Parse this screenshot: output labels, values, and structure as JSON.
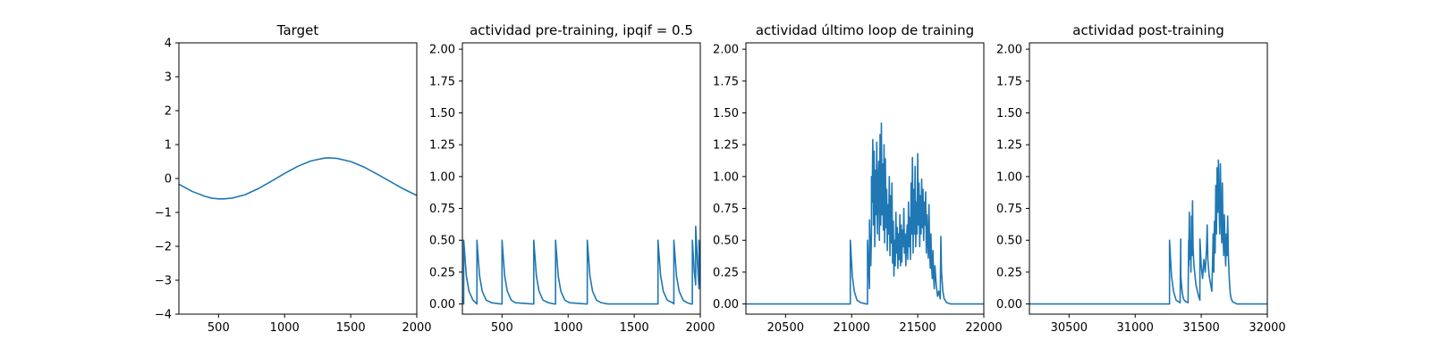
{
  "chart_data": [
    {
      "type": "line",
      "title": "Target",
      "xlim": [
        200,
        2000
      ],
      "ylim": [
        -4,
        4
      ],
      "xticks": [
        500,
        1000,
        1500,
        2000
      ],
      "xtick_labels": [
        "500",
        "1000",
        "1500",
        "2000"
      ],
      "yticks": [
        -4,
        -3,
        -2,
        -1,
        0,
        1,
        2,
        3,
        4
      ],
      "ytick_labels": [
        "−4",
        "−3",
        "−2",
        "−1",
        "0",
        "1",
        "2",
        "3",
        "4"
      ],
      "series": [
        {
          "color": "#1f77b4",
          "x": [
            200,
            300,
            400,
            450,
            500,
            540,
            600,
            700,
            800,
            900,
            1000,
            1100,
            1200,
            1300,
            1330,
            1400,
            1500,
            1600,
            1700,
            1800,
            1900,
            2000
          ],
          "y": [
            -0.17,
            -0.38,
            -0.53,
            -0.58,
            -0.6,
            -0.6,
            -0.58,
            -0.48,
            -0.3,
            -0.08,
            0.15,
            0.36,
            0.52,
            0.6,
            0.61,
            0.59,
            0.5,
            0.34,
            0.13,
            -0.09,
            -0.31,
            -0.5
          ]
        }
      ]
    },
    {
      "type": "line",
      "title": "actividad pre-training, ipqif = 0.5",
      "xlim": [
        200,
        2000
      ],
      "ylim": [
        -0.08,
        2.05
      ],
      "xticks": [
        500,
        1000,
        1500,
        2000
      ],
      "xtick_labels": [
        "500",
        "1000",
        "1500",
        "2000"
      ],
      "yticks": [
        0,
        0.25,
        0.5,
        0.75,
        1.0,
        1.25,
        1.5,
        1.75,
        2.0
      ],
      "ytick_labels": [
        "0.00",
        "0.25",
        "0.50",
        "0.75",
        "1.00",
        "1.25",
        "1.50",
        "1.75",
        "2.00"
      ],
      "series": [
        {
          "color": "#1f77b4",
          "x": [
            200,
            210,
            210,
            230,
            250,
            280,
            300,
            310,
            310,
            330,
            350,
            380,
            420,
            490,
            500,
            500,
            520,
            540,
            570,
            600,
            730,
            740,
            740,
            760,
            780,
            810,
            850,
            895,
            905,
            905,
            925,
            945,
            975,
            1010,
            1135,
            1145,
            1145,
            1165,
            1185,
            1215,
            1250,
            1300,
            1400,
            1500,
            1600,
            1670,
            1680,
            1680,
            1700,
            1720,
            1750,
            1790,
            1800,
            1800,
            1820,
            1840,
            1870,
            1900,
            1930,
            1940,
            1940,
            1955,
            1965,
            1965,
            1980,
            1990,
            1990,
            2000
          ],
          "y": [
            0.05,
            0,
            0.5,
            0.22,
            0.1,
            0.03,
            0.01,
            0,
            0.5,
            0.22,
            0.1,
            0.03,
            0.01,
            0,
            0,
            0.5,
            0.22,
            0.1,
            0.03,
            0.01,
            0,
            0,
            0.5,
            0.22,
            0.1,
            0.03,
            0.01,
            0,
            0,
            0.5,
            0.22,
            0.1,
            0.03,
            0.01,
            0,
            0,
            0.5,
            0.22,
            0.1,
            0.03,
            0.01,
            0,
            0,
            0,
            0,
            0,
            0,
            0.5,
            0.22,
            0.1,
            0.03,
            0.01,
            0,
            0.5,
            0.22,
            0.1,
            0.03,
            0.01,
            0,
            0,
            0.5,
            0.25,
            0.15,
            0.61,
            0.3,
            0.12,
            0.5,
            0.15
          ]
        }
      ]
    },
    {
      "type": "line",
      "title": "actividad último loop de training",
      "xlim": [
        20200,
        22000
      ],
      "ylim": [
        -0.08,
        2.05
      ],
      "xticks": [
        20500,
        21000,
        21500,
        22000
      ],
      "xtick_labels": [
        "20500",
        "21000",
        "21500",
        "22000"
      ],
      "yticks": [
        0,
        0.25,
        0.5,
        0.75,
        1.0,
        1.25,
        1.5,
        1.75,
        2.0
      ],
      "ytick_labels": [
        "0.00",
        "0.25",
        "0.50",
        "0.75",
        "1.00",
        "1.25",
        "1.50",
        "1.75",
        "2.00"
      ],
      "series": [
        {
          "color": "#1f77b4",
          "x": [
            20200,
            20990,
            20990,
            21005,
            21020,
            21040,
            21070,
            21110,
            21120,
            21120,
            21130,
            21135,
            21135,
            21145,
            21150,
            21150,
            21155,
            21160,
            21165,
            21170,
            21175,
            21180,
            21185,
            21190,
            21195,
            21200,
            21205,
            21210,
            21215,
            21220,
            21225,
            21230,
            21235,
            21240,
            21245,
            21250,
            21255,
            21260,
            21265,
            21270,
            21275,
            21280,
            21285,
            21290,
            21295,
            21300,
            21305,
            21310,
            21315,
            21320,
            21325,
            21330,
            21335,
            21340,
            21345,
            21350,
            21355,
            21360,
            21365,
            21370,
            21375,
            21380,
            21385,
            21390,
            21395,
            21400,
            21405,
            21410,
            21415,
            21420,
            21425,
            21430,
            21435,
            21440,
            21445,
            21450,
            21455,
            21460,
            21465,
            21470,
            21475,
            21480,
            21485,
            21490,
            21495,
            21500,
            21505,
            21510,
            21515,
            21520,
            21525,
            21530,
            21535,
            21540,
            21545,
            21550,
            21555,
            21560,
            21565,
            21570,
            21575,
            21580,
            21585,
            21590,
            21595,
            21600,
            21605,
            21610,
            21615,
            21620,
            21625,
            21630,
            21640,
            21650,
            21660,
            21670,
            21675,
            21680,
            21690,
            21700,
            21720,
            21750,
            21800,
            22000
          ],
          "y": [
            0,
            0,
            0.5,
            0.22,
            0.1,
            0.03,
            0.01,
            0,
            0,
            0.5,
            0.25,
            0.12,
            0.66,
            0.3,
            0.55,
            1.0,
            0.8,
            1.29,
            0.62,
            1.2,
            0.45,
            1.05,
            0.7,
            1.27,
            0.55,
            0.95,
            1.12,
            0.5,
            1.33,
            0.62,
            1.42,
            0.7,
            1.1,
            0.58,
            1.25,
            0.48,
            1.14,
            0.6,
            0.9,
            0.42,
            0.78,
            0.55,
            1.0,
            0.38,
            0.85,
            0.48,
            0.95,
            0.32,
            0.65,
            0.22,
            0.5,
            0.3,
            0.72,
            0.4,
            0.6,
            0.28,
            0.55,
            0.35,
            0.7,
            0.3,
            0.62,
            0.33,
            0.58,
            0.45,
            0.75,
            0.4,
            0.55,
            0.3,
            0.5,
            0.62,
            0.35,
            0.8,
            0.45,
            0.68,
            0.35,
            0.95,
            0.55,
            1.15,
            0.4,
            0.9,
            0.55,
            1.08,
            0.45,
            0.8,
            0.55,
            1.18,
            0.62,
            0.95,
            0.45,
            0.85,
            0.55,
            0.98,
            0.6,
            0.9,
            0.5,
            0.8,
            0.62,
            0.88,
            0.4,
            0.7,
            0.52,
            0.36,
            0.78,
            0.45,
            0.28,
            0.55,
            0.3,
            0.2,
            0.42,
            0.22,
            0.12,
            0.3,
            0.15,
            0.06,
            0.1,
            0.04,
            0.53,
            0.25,
            0.1,
            0.04,
            0.01,
            0,
            0,
            0
          ]
        }
      ]
    },
    {
      "type": "line",
      "title": "actividad post-training",
      "xlim": [
        30200,
        32000
      ],
      "ylim": [
        -0.08,
        2.05
      ],
      "xticks": [
        30500,
        31000,
        31500,
        32000
      ],
      "xtick_labels": [
        "30500",
        "31000",
        "31500",
        "32000"
      ],
      "yticks": [
        0,
        0.25,
        0.5,
        0.75,
        1.0,
        1.25,
        1.5,
        1.75,
        2.0
      ],
      "ytick_labels": [
        "0.00",
        "0.25",
        "0.50",
        "0.75",
        "1.00",
        "1.25",
        "1.50",
        "1.75",
        "2.00"
      ],
      "series": [
        {
          "color": "#1f77b4",
          "x": [
            30200,
            31260,
            31260,
            31275,
            31290,
            31310,
            31340,
            31345,
            31345,
            31355,
            31365,
            31380,
            31400,
            31405,
            31405,
            31410,
            31415,
            31418,
            31422,
            31426,
            31430,
            31434,
            31438,
            31445,
            31460,
            31480,
            31490,
            31490,
            31500,
            31510,
            31520,
            31530,
            31540,
            31545,
            31550,
            31560,
            31570,
            31580,
            31585,
            31590,
            31595,
            31600,
            31605,
            31610,
            31615,
            31620,
            31625,
            31630,
            31635,
            31640,
            31645,
            31650,
            31655,
            31660,
            31665,
            31670,
            31675,
            31680,
            31685,
            31690,
            31695,
            31700,
            31705,
            31710,
            31715,
            31720,
            31725,
            31735,
            31750,
            31770,
            31800,
            32000
          ],
          "y": [
            0,
            0,
            0.5,
            0.22,
            0.1,
            0.03,
            0.01,
            0.51,
            0.22,
            0.1,
            0.04,
            0.02,
            0.01,
            0.5,
            0.3,
            0.72,
            0.35,
            0.5,
            0.25,
            0.69,
            0.38,
            0.81,
            0.45,
            0.3,
            0.15,
            0.06,
            0.03,
            0.51,
            0.3,
            0.2,
            0.35,
            0.25,
            0.43,
            0.62,
            0.35,
            0.22,
            0.16,
            0.1,
            0.3,
            0.55,
            0.25,
            0.65,
            0.4,
            0.93,
            0.55,
            1.07,
            0.72,
            1.13,
            0.8,
            0.55,
            1.1,
            0.7,
            0.48,
            0.95,
            0.55,
            0.38,
            0.7,
            0.45,
            0.3,
            0.55,
            0.38,
            0.69,
            0.4,
            0.25,
            0.15,
            0.08,
            0.05,
            0.02,
            0.01,
            0,
            0,
            0
          ]
        }
      ]
    }
  ]
}
